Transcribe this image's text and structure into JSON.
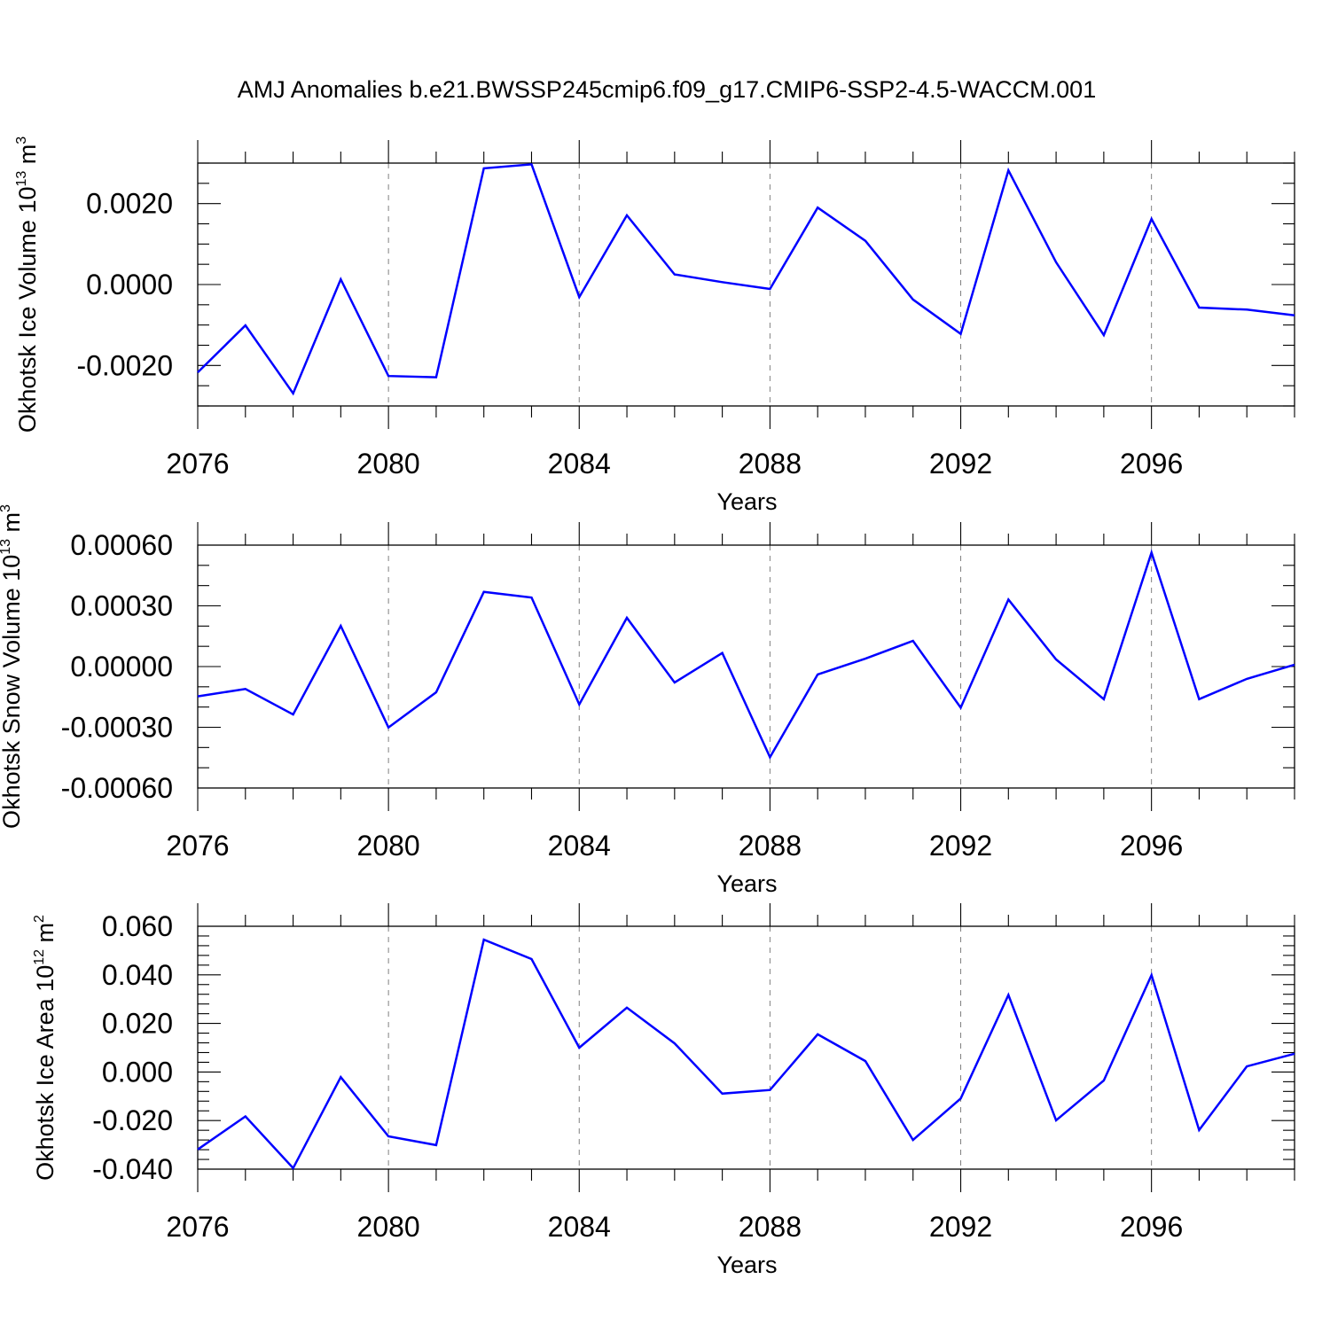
{
  "figure": {
    "title": "AMJ Anomalies b.e21.BWSSP245cmip6.f09_g17.CMIP6-SSP2-4.5-WACCM.001"
  },
  "chart_data": [
    {
      "type": "line",
      "xlabel": "Years",
      "ylabel": "Okhotsk Ice Volume 10",
      "ylabel_sup1": "13",
      "ylabel_unit": " m",
      "ylabel_sup2": "3",
      "xlim": [
        2076,
        2099
      ],
      "ylim": [
        -0.003,
        0.003
      ],
      "x_ticks": [
        2076,
        2080,
        2084,
        2088,
        2092,
        2096
      ],
      "y_ticks": [
        -0.002,
        0.0,
        0.002
      ],
      "y_tick_labels": [
        "-0.0020",
        "0.0000",
        "0.0020"
      ],
      "y_minor_step": 0.0005,
      "grid": "vertical dashed at major x ticks",
      "series_color": "#0000ff",
      "x": [
        2076,
        2077,
        2078,
        2079,
        2080,
        2081,
        2082,
        2083,
        2084,
        2085,
        2086,
        2087,
        2088,
        2089,
        2090,
        2091,
        2092,
        2093,
        2094,
        2095,
        2096,
        2097,
        2098,
        2099
      ],
      "values": [
        -0.00217,
        -0.00101,
        -0.00269,
        0.00013,
        -0.00226,
        -0.00229,
        0.00287,
        0.00297,
        -0.00031,
        0.00171,
        0.00025,
        6e-05,
        -0.00011,
        0.0019,
        0.00108,
        -0.00037,
        -0.00122,
        0.00282,
        0.00055,
        -0.00125,
        0.00162,
        -0.00057,
        -0.00062,
        -0.00076
      ]
    },
    {
      "type": "line",
      "xlabel": "Years",
      "ylabel": "Okhotsk Snow Volume 10",
      "ylabel_sup1": "13",
      "ylabel_unit": " m",
      "ylabel_sup2": "3",
      "xlim": [
        2076,
        2099
      ],
      "ylim": [
        -0.0006,
        0.0006
      ],
      "x_ticks": [
        2076,
        2080,
        2084,
        2088,
        2092,
        2096
      ],
      "y_ticks": [
        -0.0006,
        -0.0003,
        0.0,
        0.0003,
        0.0006
      ],
      "y_tick_labels": [
        "-0.00060",
        "-0.00030",
        "0.00000",
        "0.00030",
        "0.00060"
      ],
      "y_minor_step": 0.0001,
      "grid": "vertical dashed at major x ticks",
      "series_color": "#0000ff",
      "x": [
        2076,
        2077,
        2078,
        2079,
        2080,
        2081,
        2082,
        2083,
        2084,
        2085,
        2086,
        2087,
        2088,
        2089,
        2090,
        2091,
        2092,
        2093,
        2094,
        2095,
        2096,
        2097,
        2098,
        2099
      ],
      "values": [
        -0.000147,
        -0.000111,
        -0.000237,
        0.000201,
        -0.000301,
        -0.000127,
        0.000369,
        0.000341,
        -0.000187,
        0.000241,
        -7.9e-05,
        6.7e-05,
        -0.000448,
        -3.9e-05,
        3.9e-05,
        0.000127,
        -0.000203,
        0.000331,
        3.5e-05,
        -0.000161,
        0.000563,
        -0.000161,
        -6.1e-05,
        9e-06
      ]
    },
    {
      "type": "line",
      "xlabel": "Years",
      "ylabel": "Okhotsk Ice Area 10",
      "ylabel_sup1": "12",
      "ylabel_unit": " m",
      "ylabel_sup2": "2",
      "xlim": [
        2076,
        2099
      ],
      "ylim": [
        -0.04,
        0.06
      ],
      "x_ticks": [
        2076,
        2080,
        2084,
        2088,
        2092,
        2096
      ],
      "y_ticks": [
        -0.04,
        -0.02,
        0.0,
        0.02,
        0.04,
        0.06
      ],
      "y_tick_labels": [
        "-0.040",
        "-0.020",
        "0.000",
        "0.020",
        "0.040",
        "0.060"
      ],
      "y_minor_step": 0.004,
      "grid": "vertical dashed at major x ticks",
      "series_color": "#0000ff",
      "x": [
        2076,
        2077,
        2078,
        2079,
        2080,
        2081,
        2082,
        2083,
        2084,
        2085,
        2086,
        2087,
        2088,
        2089,
        2090,
        2091,
        2092,
        2093,
        2094,
        2095,
        2096,
        2097,
        2098,
        2099
      ],
      "values": [
        -0.0319,
        -0.0183,
        -0.0396,
        -0.0021,
        -0.0265,
        -0.0301,
        0.0545,
        0.0465,
        0.01,
        0.0265,
        0.0118,
        -0.0089,
        -0.0074,
        0.0155,
        0.0045,
        -0.028,
        -0.0109,
        0.0317,
        -0.0199,
        -0.0035,
        0.0399,
        -0.0239,
        0.0023,
        0.0075
      ]
    }
  ]
}
